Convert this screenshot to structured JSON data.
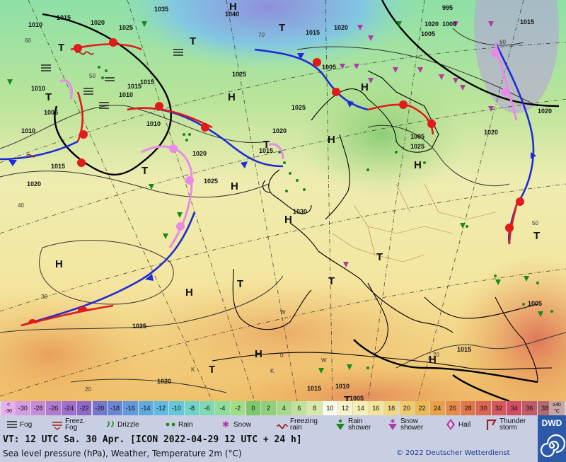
{
  "map": {
    "pressure_labels": [
      {
        "text": "1015"
      },
      {
        "text": "1010"
      },
      {
        "text": "1020"
      },
      {
        "text": "1025"
      },
      {
        "text": "1035"
      },
      {
        "text": "1040"
      },
      {
        "text": "1015"
      },
      {
        "text": "1020"
      },
      {
        "text": "995"
      },
      {
        "text": "1000"
      },
      {
        "text": "1005"
      },
      {
        "text": "1015"
      },
      {
        "text": "1010"
      },
      {
        "text": "1015"
      },
      {
        "text": "1005"
      },
      {
        "text": "1010"
      },
      {
        "text": "1025"
      },
      {
        "text": "1025"
      },
      {
        "text": "1020"
      },
      {
        "text": "1020"
      },
      {
        "text": "1015"
      },
      {
        "text": "1020"
      },
      {
        "text": "1010"
      },
      {
        "text": "1015"
      },
      {
        "text": "1020"
      },
      {
        "text": "1025"
      },
      {
        "text": "1030"
      },
      {
        "text": "1025"
      },
      {
        "text": "1020"
      },
      {
        "text": "1025"
      },
      {
        "text": "1020"
      },
      {
        "text": "1015"
      },
      {
        "text": "1010"
      },
      {
        "text": "1015"
      },
      {
        "text": "1005"
      },
      {
        "text": "1005"
      },
      {
        "text": "1010"
      },
      {
        "text": "1005"
      },
      {
        "text": "1015"
      },
      {
        "text": "1020"
      },
      {
        "text": "1005"
      }
    ],
    "centers": [
      {
        "type": "H"
      },
      {
        "type": "H"
      },
      {
        "type": "H"
      },
      {
        "type": "H"
      },
      {
        "type": "H"
      },
      {
        "type": "H"
      },
      {
        "type": "H"
      },
      {
        "type": "H"
      },
      {
        "type": "H"
      },
      {
        "type": "H"
      },
      {
        "type": "H"
      },
      {
        "type": "T"
      },
      {
        "type": "T"
      },
      {
        "type": "T"
      },
      {
        "type": "T"
      },
      {
        "type": "T"
      },
      {
        "type": "T"
      },
      {
        "type": "T"
      },
      {
        "type": "T"
      },
      {
        "type": "T"
      },
      {
        "type": "T"
      },
      {
        "type": "T"
      },
      {
        "type": "T"
      }
    ],
    "lat_labels": [
      {
        "text": "60"
      },
      {
        "text": "50"
      },
      {
        "text": "40"
      },
      {
        "text": "30"
      },
      {
        "text": "20"
      },
      {
        "text": "70"
      },
      {
        "text": "60"
      },
      {
        "text": "50"
      }
    ],
    "lon_labels": [
      {
        "text": "20"
      },
      {
        "text": "0"
      },
      {
        "text": "W"
      },
      {
        "text": "W"
      },
      {
        "text": "K"
      },
      {
        "text": "K"
      }
    ]
  },
  "scale": {
    "low_label": "<\n-30",
    "values": [
      "-30",
      "-28",
      "-26",
      "-24",
      "-22",
      "-20",
      "-18",
      "-16",
      "-14",
      "-12",
      "-10",
      "-8",
      "-6",
      "-4",
      "-2",
      "0",
      "2",
      "4",
      "6",
      "8",
      "10",
      "12",
      "14",
      "16",
      "18",
      "20",
      "22",
      "24",
      "26",
      "28",
      "30",
      "32",
      "34",
      "36",
      "38"
    ],
    "colors": [
      "#d49be0",
      "#c58ad8",
      "#b37ad0",
      "#9f6fcb",
      "#8c6ac9",
      "#7576cf",
      "#6a86d6",
      "#6298dc",
      "#5eaadf",
      "#5fbbe0",
      "#62c9da",
      "#6fd3c8",
      "#80d9b2",
      "#8fdd9b",
      "#9edf86",
      "#7cc86a",
      "#8fd07a",
      "#a6d98a",
      "#bfe19a",
      "#d6e9ab",
      "#fbfbe9",
      "#f7f4cc",
      "#f5eeb5",
      "#f3e59c",
      "#f1d983",
      "#efcb6d",
      "#ecb957",
      "#e9a14a",
      "#e58c4a",
      "#e0764c",
      "#dc6553",
      "#d6585c",
      "#d04d64",
      "#c05b6a",
      "#b06c70"
    ],
    "high_label": "≥40\n°C"
  },
  "legend": [
    {
      "icon": "fog-icon",
      "label": "Fog"
    },
    {
      "icon": "freezing-fog-icon",
      "label": "Freez.\nFog"
    },
    {
      "icon": "drizzle-icon",
      "label": "Drizzle"
    },
    {
      "icon": "rain-icon",
      "label": "Rain"
    },
    {
      "icon": "snow-icon",
      "label": "Snow"
    },
    {
      "icon": "freezing-rain-icon",
      "label": "Freezing\nrain"
    },
    {
      "icon": "rain-shower-icon",
      "label": "Rain\nshower"
    },
    {
      "icon": "snow-shower-icon",
      "label": "Snow\nshower"
    },
    {
      "icon": "hail-icon",
      "label": "Hail"
    },
    {
      "icon": "thunderstorm-icon",
      "label": "Thunder\nstorm"
    }
  ],
  "info": {
    "valid_time": "VT: 12 UTC Sa.  30 Apr. [ICON 2022-04-29  12 UTC + 24 h]",
    "description": "Sea level pressure (hPa), Weather, Temperature 2m (°C)",
    "copyright": "© 2022 Deutscher Wetterdienst"
  },
  "logo": {
    "name": "DWD"
  }
}
